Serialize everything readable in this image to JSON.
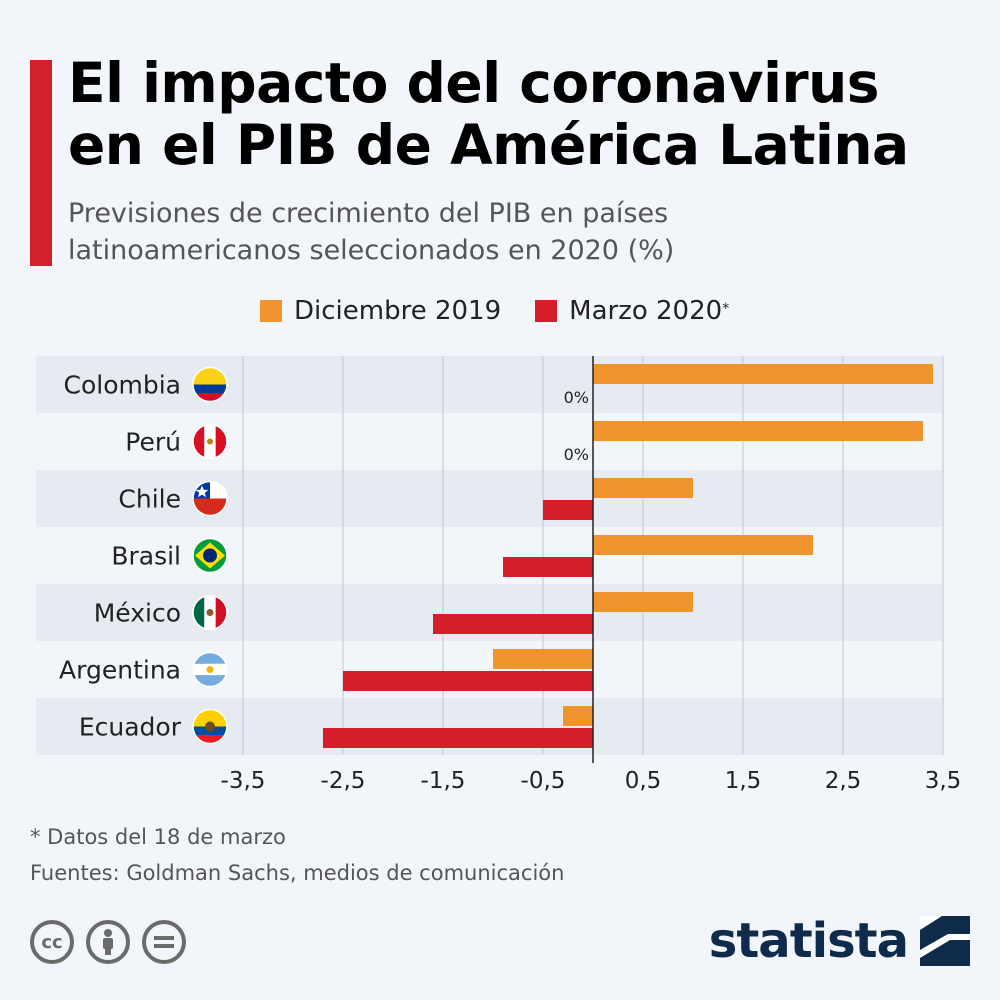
{
  "header": {
    "title_line1": "El impacto del coronavirus",
    "title_line2": "en el PIB de América Latina",
    "subtitle_line1": "Previsiones de crecimiento del PIB en países",
    "subtitle_line2": "latinoamericanos seleccionados en 2020 (%)"
  },
  "colors": {
    "accent": "#d2202c",
    "dic2019": "#f0952d",
    "mar2020": "#d41f2b",
    "brand": "#0f2b4c"
  },
  "legend": {
    "series1": "Diciembre 2019",
    "series2": "Marzo 2020",
    "series2_mark": "*"
  },
  "chart_data": {
    "type": "bar",
    "orientation": "horizontal",
    "categories": [
      "Colombia",
      "Perú",
      "Chile",
      "Brasil",
      "México",
      "Argentina",
      "Ecuador"
    ],
    "flags": [
      "colombia-flag-icon",
      "peru-flag-icon",
      "chile-flag-icon",
      "brasil-flag-icon",
      "mexico-flag-icon",
      "argentina-flag-icon",
      "ecuador-flag-icon"
    ],
    "series": [
      {
        "name": "Diciembre 2019",
        "values": [
          3.4,
          3.3,
          1.0,
          2.2,
          1.0,
          -1.0,
          -0.3
        ]
      },
      {
        "name": "Marzo 2020",
        "values": [
          0,
          0,
          -0.5,
          -0.9,
          -1.6,
          -2.5,
          -2.7
        ]
      }
    ],
    "zero_labels": [
      "0%",
      "0%"
    ],
    "xlim": [
      -3.5,
      3.5
    ],
    "xticks": [
      -3.5,
      -2.5,
      -1.5,
      -0.5,
      0.5,
      1.5,
      2.5,
      3.5
    ],
    "xtick_labels": [
      "-3,5",
      "-2,5",
      "-1,5",
      "-0,5",
      "0,5",
      "1,5",
      "2,5",
      "3,5"
    ],
    "grid": true
  },
  "footer": {
    "note": "* Datos del 18 de marzo",
    "source": "Fuentes: Goldman Sachs, medios de comunicación",
    "brand": "statista",
    "license_icons": [
      "cc-icon",
      "attribution-icon",
      "no-derivatives-icon"
    ]
  }
}
